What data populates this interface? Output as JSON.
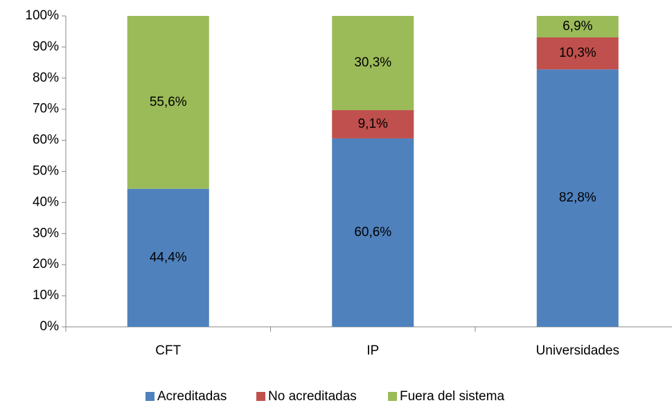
{
  "chart_data": {
    "type": "stacked_bar",
    "categories": [
      "CFT",
      "IP",
      "Universidades"
    ],
    "series": [
      {
        "name": "Acreditadas",
        "color": "#4f81bd",
        "values": [
          44.4,
          60.6,
          82.8
        ],
        "value_labels": [
          "44,4%",
          "60,6%",
          "82,8%"
        ]
      },
      {
        "name": "No acreditadas",
        "color": "#c0504d",
        "values": [
          0,
          9.1,
          10.3
        ],
        "value_labels": [
          null,
          "9,1%",
          "10,3%"
        ]
      },
      {
        "name": "Fuera del sistema",
        "color": "#9bbb59",
        "values": [
          55.6,
          30.3,
          6.9
        ],
        "value_labels": [
          "55,6%",
          "30,3%",
          "6,9%"
        ]
      }
    ],
    "ylim": [
      0,
      100
    ],
    "yticks": [
      {
        "value": 0,
        "label": "0%"
      },
      {
        "value": 10,
        "label": "10%"
      },
      {
        "value": 20,
        "label": "20%"
      },
      {
        "value": 30,
        "label": "30%"
      },
      {
        "value": 40,
        "label": "40%"
      },
      {
        "value": 50,
        "label": "50%"
      },
      {
        "value": 60,
        "label": "60%"
      },
      {
        "value": 70,
        "label": "70%"
      },
      {
        "value": 80,
        "label": "80%"
      },
      {
        "value": 90,
        "label": "90%"
      },
      {
        "value": 100,
        "label": "100%"
      }
    ],
    "legend": "bottom"
  }
}
